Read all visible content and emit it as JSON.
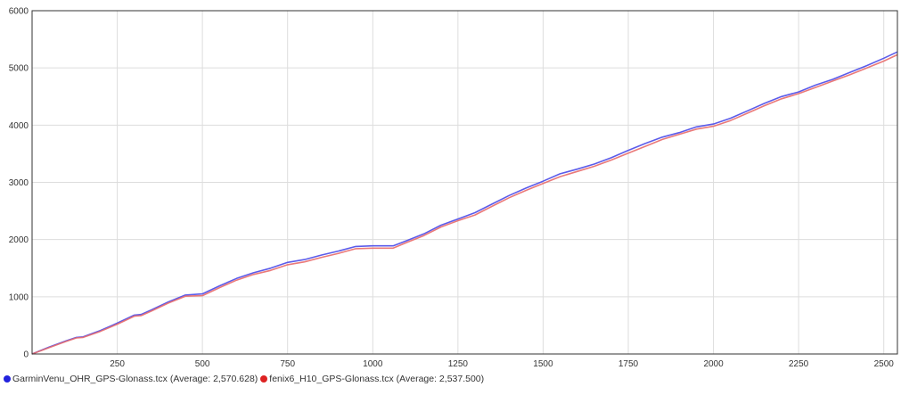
{
  "chart_data": {
    "type": "line",
    "xlim": [
      0,
      2540
    ],
    "ylim": [
      0,
      6000
    ],
    "x_ticks": [
      250,
      500,
      750,
      1000,
      1250,
      1500,
      1750,
      2000,
      2250,
      2500
    ],
    "y_ticks": [
      0,
      1000,
      2000,
      3000,
      4000,
      5000,
      6000
    ],
    "grid": true,
    "legend_position": "bottom-left",
    "series": [
      {
        "name": "GarminVenu_OHR_GPS-Glonass.tcx",
        "legend_label": "GarminVenu_OHR_GPS-Glonass.tcx (Average: 2,570.628)",
        "color": "#4a4ae8",
        "points": [
          [
            0,
            0
          ],
          [
            50,
            120
          ],
          [
            100,
            230
          ],
          [
            130,
            290
          ],
          [
            150,
            300
          ],
          [
            200,
            410
          ],
          [
            250,
            540
          ],
          [
            300,
            680
          ],
          [
            320,
            690
          ],
          [
            350,
            770
          ],
          [
            400,
            910
          ],
          [
            450,
            1030
          ],
          [
            500,
            1050
          ],
          [
            550,
            1190
          ],
          [
            600,
            1320
          ],
          [
            650,
            1420
          ],
          [
            700,
            1500
          ],
          [
            750,
            1600
          ],
          [
            800,
            1650
          ],
          [
            850,
            1730
          ],
          [
            900,
            1800
          ],
          [
            950,
            1880
          ],
          [
            1000,
            1890
          ],
          [
            1060,
            1890
          ],
          [
            1100,
            1980
          ],
          [
            1150,
            2100
          ],
          [
            1200,
            2250
          ],
          [
            1250,
            2360
          ],
          [
            1300,
            2470
          ],
          [
            1350,
            2620
          ],
          [
            1400,
            2770
          ],
          [
            1450,
            2900
          ],
          [
            1500,
            3020
          ],
          [
            1550,
            3150
          ],
          [
            1600,
            3230
          ],
          [
            1650,
            3320
          ],
          [
            1700,
            3430
          ],
          [
            1750,
            3560
          ],
          [
            1800,
            3680
          ],
          [
            1850,
            3790
          ],
          [
            1900,
            3870
          ],
          [
            1950,
            3970
          ],
          [
            2000,
            4020
          ],
          [
            2050,
            4120
          ],
          [
            2100,
            4250
          ],
          [
            2150,
            4380
          ],
          [
            2200,
            4500
          ],
          [
            2250,
            4580
          ],
          [
            2300,
            4700
          ],
          [
            2350,
            4800
          ],
          [
            2400,
            4920
          ],
          [
            2450,
            5040
          ],
          [
            2500,
            5170
          ],
          [
            2540,
            5280
          ]
        ]
      },
      {
        "name": "fenix6_H10_GPS-Glonass.tcx",
        "legend_label": "fenix6_H10_GPS-Glonass.tcx (Average: 2,537.500)",
        "color": "#e86a6a",
        "points": [
          [
            0,
            0
          ],
          [
            50,
            110
          ],
          [
            100,
            220
          ],
          [
            130,
            280
          ],
          [
            150,
            290
          ],
          [
            200,
            395
          ],
          [
            250,
            520
          ],
          [
            300,
            660
          ],
          [
            320,
            670
          ],
          [
            350,
            750
          ],
          [
            400,
            890
          ],
          [
            450,
            1010
          ],
          [
            500,
            1020
          ],
          [
            550,
            1160
          ],
          [
            600,
            1290
          ],
          [
            650,
            1390
          ],
          [
            700,
            1460
          ],
          [
            750,
            1560
          ],
          [
            800,
            1610
          ],
          [
            850,
            1690
          ],
          [
            900,
            1760
          ],
          [
            950,
            1840
          ],
          [
            1000,
            1850
          ],
          [
            1060,
            1850
          ],
          [
            1100,
            1950
          ],
          [
            1150,
            2070
          ],
          [
            1200,
            2220
          ],
          [
            1250,
            2330
          ],
          [
            1300,
            2430
          ],
          [
            1350,
            2580
          ],
          [
            1400,
            2730
          ],
          [
            1450,
            2860
          ],
          [
            1500,
            2980
          ],
          [
            1550,
            3100
          ],
          [
            1600,
            3190
          ],
          [
            1650,
            3280
          ],
          [
            1700,
            3390
          ],
          [
            1750,
            3510
          ],
          [
            1800,
            3630
          ],
          [
            1850,
            3750
          ],
          [
            1900,
            3840
          ],
          [
            1950,
            3930
          ],
          [
            2000,
            3980
          ],
          [
            2050,
            4080
          ],
          [
            2100,
            4210
          ],
          [
            2150,
            4340
          ],
          [
            2200,
            4460
          ],
          [
            2250,
            4550
          ],
          [
            2300,
            4660
          ],
          [
            2350,
            4770
          ],
          [
            2400,
            4880
          ],
          [
            2450,
            5000
          ],
          [
            2500,
            5120
          ],
          [
            2540,
            5230
          ]
        ]
      }
    ]
  }
}
